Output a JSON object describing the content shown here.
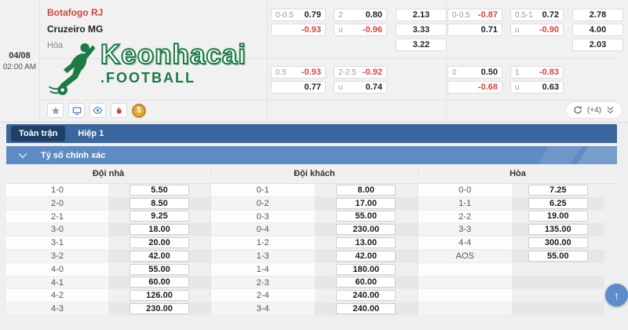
{
  "match": {
    "date": "04/08",
    "time": "02:00 AM",
    "home_team": "Botafogo RJ",
    "away_team": "Cruzeiro MG",
    "result_label": "Hòa"
  },
  "logo": {
    "title": "Keonhacai",
    "subtitle": ".FOOTBALL",
    "icon": "soccer-player-icon",
    "brand_color": "#1c7a44"
  },
  "odds_panels": [
    {
      "position": "tl",
      "handicap": {
        "rows": [
          {
            "label": "0-0.5",
            "value": "0.79"
          },
          {
            "label": "",
            "value": "-0.93"
          }
        ]
      },
      "over_under": {
        "rows": [
          {
            "label": "2",
            "value": "0.80"
          },
          {
            "label": "u",
            "value": "-0.96"
          }
        ]
      },
      "one_x_two": [
        "2.13",
        "3.33",
        "3.22"
      ]
    },
    {
      "position": "tr",
      "handicap": {
        "rows": [
          {
            "label": "0-0.5",
            "value": "-0.87"
          },
          {
            "label": "",
            "value": "0.71"
          }
        ]
      },
      "over_under": {
        "rows": [
          {
            "label": "0.5-1",
            "value": "0.72"
          },
          {
            "label": "u",
            "value": "-0.90"
          }
        ]
      },
      "one_x_two": [
        "2.78",
        "4.00",
        "2.03"
      ]
    },
    {
      "position": "bl",
      "handicap": {
        "rows": [
          {
            "label": "0.5",
            "value": "-0.93"
          },
          {
            "label": "",
            "value": "0.77"
          }
        ]
      },
      "over_under": {
        "rows": [
          {
            "label": "2-2.5",
            "value": "-0.92"
          },
          {
            "label": "u",
            "value": "0.74"
          }
        ]
      },
      "one_x_two": []
    },
    {
      "position": "br",
      "handicap": {
        "rows": [
          {
            "label": "0",
            "value": "0.50"
          },
          {
            "label": "",
            "value": "-0.68"
          }
        ]
      },
      "over_under": {
        "rows": [
          {
            "label": "1",
            "value": "-0.83"
          },
          {
            "label": "u",
            "value": "0.63"
          }
        ]
      },
      "one_x_two": []
    }
  ],
  "action_icons": [
    {
      "name": "favorite-star-icon"
    },
    {
      "name": "live-tv-icon"
    },
    {
      "name": "watch-eye-icon"
    },
    {
      "name": "hot-flame-icon"
    },
    {
      "name": "coin-icon",
      "glyph": "$"
    }
  ],
  "header_controls": {
    "refresh_icon": "refresh-icon",
    "more_count": "(+4)",
    "expand_icon": "double-chevron-down-icon"
  },
  "tabs": [
    {
      "label": "Toàn trận",
      "active": true
    },
    {
      "label": "Hiệp 1",
      "active": false
    }
  ],
  "section": {
    "title": "Tỷ số chính xác",
    "collapse_icon": "chevron-down-icon"
  },
  "score_table": {
    "columns": [
      "Đội nhà",
      "Đội khách",
      "Hòa"
    ],
    "home": [
      [
        "1-0",
        "5.50"
      ],
      [
        "2-0",
        "8.50"
      ],
      [
        "2-1",
        "9.25"
      ],
      [
        "3-0",
        "18.00"
      ],
      [
        "3-1",
        "20.00"
      ],
      [
        "3-2",
        "42.00"
      ],
      [
        "4-0",
        "55.00"
      ],
      [
        "4-1",
        "60.00"
      ],
      [
        "4-2",
        "126.00"
      ],
      [
        "4-3",
        "230.00"
      ]
    ],
    "away": [
      [
        "0-1",
        "8.00"
      ],
      [
        "0-2",
        "17.00"
      ],
      [
        "0-3",
        "55.00"
      ],
      [
        "0-4",
        "230.00"
      ],
      [
        "1-2",
        "13.00"
      ],
      [
        "1-3",
        "42.00"
      ],
      [
        "1-4",
        "180.00"
      ],
      [
        "2-3",
        "60.00"
      ],
      [
        "2-4",
        "240.00"
      ],
      [
        "3-4",
        "240.00"
      ]
    ],
    "draw": [
      [
        "0-0",
        "7.25"
      ],
      [
        "1-1",
        "6.25"
      ],
      [
        "2-2",
        "19.00"
      ],
      [
        "3-3",
        "135.00"
      ],
      [
        "4-4",
        "300.00"
      ],
      [
        "AOS",
        "55.00"
      ]
    ]
  },
  "fab": {
    "name": "scroll-to-top-button",
    "glyph": "↑"
  },
  "colors": {
    "tab_bar_blue": "#3a66a0",
    "active_tab_navy": "#1d4066",
    "section_blue": "#5f8bc4",
    "odds_negative_red": "#d6453d",
    "home_team_red": "#c9463e",
    "brand_green": "#1c7a44"
  }
}
